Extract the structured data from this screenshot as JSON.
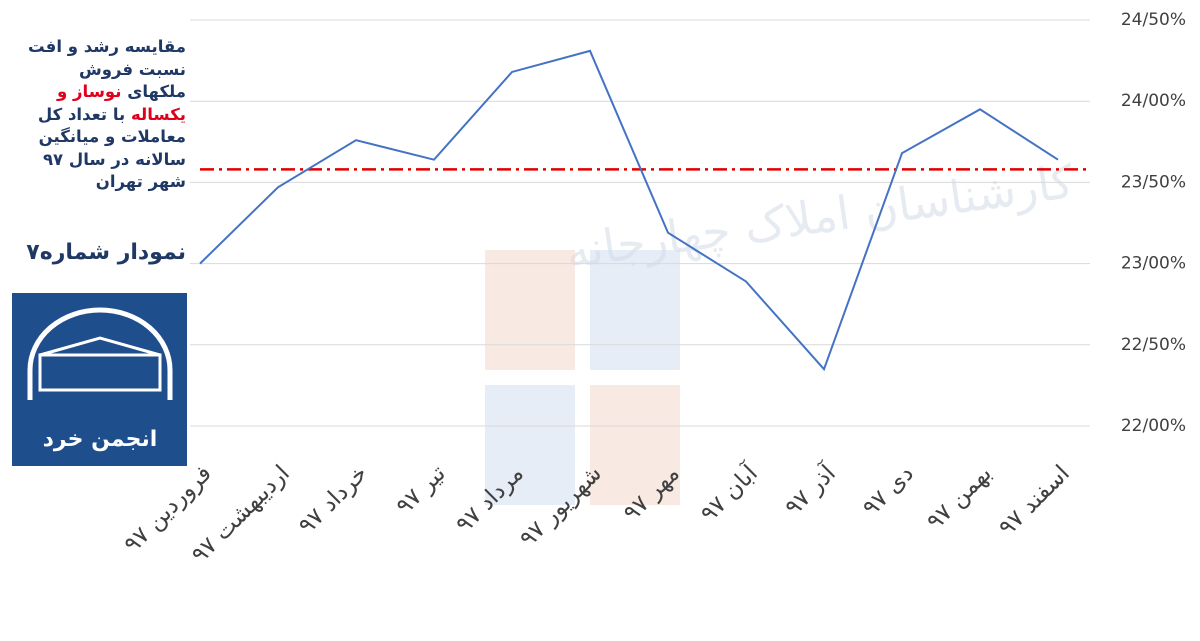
{
  "chart_data": {
    "type": "line",
    "title": [
      [
        "مقایسه رشد و افت"
      ],
      [
        "نسبت فروش"
      ],
      [
        "ملکهای ",
        "نوساز و"
      ],
      [
        "یکساله",
        "  با تعداد کل"
      ],
      [
        "معاملات  و میانگین"
      ],
      [
        "سالانه در سال ۹۷"
      ],
      [
        "شهر تهران"
      ]
    ],
    "subtitle": "نمودار شماره۷",
    "logo_text": "انجمن خرد",
    "watermark": "کارشناسان املاک چهارجانه",
    "categories": [
      "فروردین ۹۷",
      "اردیبهشت ۹۷",
      "خرداد ۹۷",
      "تیر ۹۷",
      "مرداد ۹۷",
      "شهریور ۹۷",
      "مهر ۹۷",
      "آبان ۹۷",
      "آذر ۹۷",
      "دی ۹۷",
      "بهمن ۹۷",
      "اسفند ۹۷"
    ],
    "values": [
      23.0,
      23.47,
      23.76,
      23.64,
      24.18,
      24.31,
      23.19,
      22.89,
      22.35,
      23.68,
      23.95,
      23.64
    ],
    "color": "#4472c4",
    "reference_line": {
      "value": 23.58,
      "color": "#e00000"
    },
    "ylim": [
      22.0,
      24.5
    ],
    "yticks": [
      {
        "value": 22.0,
        "label": "22/00%"
      },
      {
        "value": 22.5,
        "label": "22/50%"
      },
      {
        "value": 23.0,
        "label": "23/00%"
      },
      {
        "value": 23.5,
        "label": "23/50%"
      },
      {
        "value": 24.0,
        "label": "24/00%"
      },
      {
        "value": 24.5,
        "label": "24/50%"
      }
    ],
    "y_axis_side": "right",
    "grid": true
  }
}
